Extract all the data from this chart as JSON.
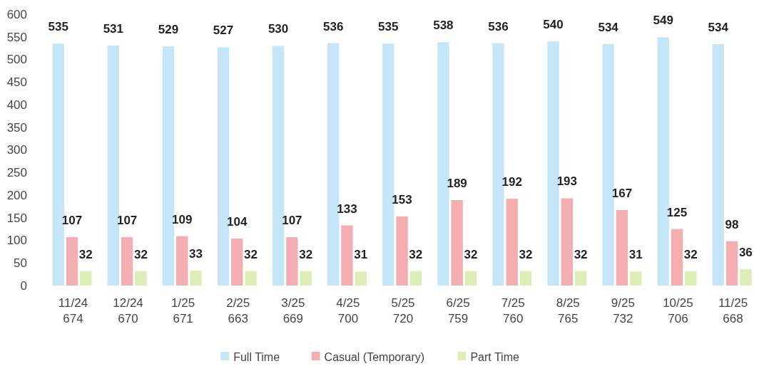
{
  "chart_data": {
    "type": "bar",
    "categories": [
      "11/24\n674",
      "12/24\n670",
      "1/25\n671",
      "2/25\n663",
      "3/25\n669",
      "4/25\n700",
      "5/25\n720",
      "6/25\n759",
      "7/25\n760",
      "8/25\n765",
      "9/25\n732",
      "10/25\n706",
      "11/25\n668"
    ],
    "series": [
      {
        "name": "Full Time",
        "color": "#c5e6f8",
        "values": [
          535,
          531,
          529,
          527,
          530,
          536,
          535,
          538,
          536,
          540,
          534,
          549,
          534
        ]
      },
      {
        "name": "Casual (Temporary)",
        "color": "#f4aeb2",
        "values": [
          107,
          107,
          109,
          104,
          107,
          133,
          153,
          189,
          192,
          193,
          167,
          125,
          98
        ]
      },
      {
        "name": "Part Time",
        "color": "#dcedb5",
        "values": [
          32,
          32,
          33,
          32,
          32,
          31,
          32,
          32,
          32,
          32,
          31,
          32,
          36
        ]
      }
    ],
    "ylim": [
      0,
      600
    ],
    "yticks": [
      0,
      50,
      100,
      150,
      200,
      250,
      300,
      350,
      400,
      450,
      500,
      550,
      600
    ],
    "grid": false,
    "legend": "bottom",
    "data_labels": true
  }
}
